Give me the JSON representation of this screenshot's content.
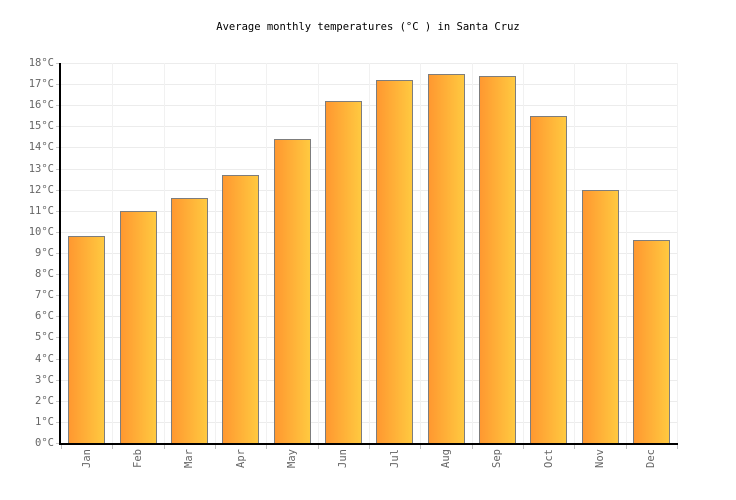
{
  "title": "Average monthly temperatures (°C ) in Santa Cruz",
  "chart_data": {
    "type": "bar",
    "title": "Average monthly temperatures (°C ) in Santa Cruz",
    "categories": [
      "Jan",
      "Feb",
      "Mar",
      "Apr",
      "May",
      "Jun",
      "Jul",
      "Aug",
      "Sep",
      "Oct",
      "Nov",
      "Dec"
    ],
    "values": [
      9.8,
      11.0,
      11.6,
      12.7,
      14.4,
      16.2,
      17.2,
      17.5,
      17.4,
      15.5,
      12.0,
      9.6
    ],
    "unit": "°C",
    "xlabel": "",
    "ylabel": "",
    "ylim": [
      0,
      18
    ],
    "y_tick_step": 1,
    "y_tick_labels": [
      "0°C",
      "1°C",
      "2°C",
      "3°C",
      "4°C",
      "5°C",
      "6°C",
      "7°C",
      "8°C",
      "9°C",
      "10°C",
      "11°C",
      "12°C",
      "13°C",
      "14°C",
      "15°C",
      "16°C",
      "17°C",
      "18°C"
    ],
    "grid": true,
    "legend": false,
    "colors": {
      "bar_gradient_start": "#FF9830",
      "bar_gradient_end": "#FFC940",
      "bar_border": "#7d7d7d",
      "grid_horizontal": "#ececec",
      "grid_vertical": "#f1f1f1",
      "axis": "#000000",
      "y_tick": "#c9c9c9",
      "x_tick": "#c0c0c0",
      "label_text": "#666666",
      "title_text": "#000000",
      "background": "#ffffff"
    }
  }
}
